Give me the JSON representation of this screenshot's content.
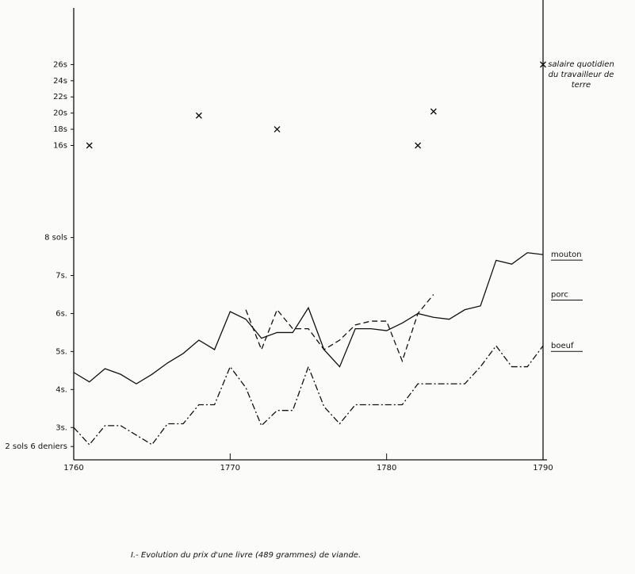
{
  "chart_data": [
    {
      "type": "scatter",
      "series": [
        {
          "name": "salaire quotidien du travailleur de terre",
          "color": "#111111",
          "marker": "x",
          "x": [
            1761,
            1768,
            1773,
            1782,
            1783,
            1790
          ],
          "values": [
            16,
            19.7,
            18,
            16,
            20.2,
            26
          ]
        }
      ],
      "xlim": [
        1760,
        1790
      ],
      "ylim": [
        8.5,
        33
      ],
      "yticks": [
        {
          "value": 16,
          "label": "16s"
        },
        {
          "value": 18,
          "label": "18s"
        },
        {
          "value": 20,
          "label": "20s"
        },
        {
          "value": 22,
          "label": "22s"
        },
        {
          "value": 24,
          "label": "24s"
        },
        {
          "value": 26,
          "label": "26s"
        }
      ]
    },
    {
      "type": "line",
      "title": "I.- Evolution du prix d'une livre (489 grammes) de viande.",
      "x": [
        1760,
        1761,
        1762,
        1763,
        1764,
        1765,
        1766,
        1767,
        1768,
        1769,
        1770,
        1771,
        1772,
        1773,
        1774,
        1775,
        1776,
        1777,
        1778,
        1779,
        1780,
        1781,
        1782,
        1783,
        1784,
        1785,
        1786,
        1787,
        1788,
        1789,
        1790
      ],
      "series": [
        {
          "name": "mouton",
          "color": "#111111",
          "style": "solid",
          "values": [
            4.45,
            4.2,
            4.55,
            4.4,
            4.15,
            4.4,
            4.7,
            4.95,
            5.3,
            5.05,
            6.05,
            5.85,
            5.35,
            5.5,
            5.5,
            6.15,
            5.05,
            4.6,
            5.6,
            5.6,
            5.55,
            5.75,
            6.0,
            5.9,
            5.85,
            6.1,
            6.2,
            7.4,
            7.3,
            7.6,
            7.55
          ]
        },
        {
          "name": "porc",
          "color": "#111111",
          "style": "dashed",
          "values": [
            null,
            null,
            null,
            null,
            null,
            null,
            null,
            null,
            null,
            null,
            null,
            6.1,
            5.05,
            6.1,
            5.6,
            5.6,
            5.05,
            5.3,
            5.7,
            5.8,
            5.8,
            4.75,
            6.0,
            6.5,
            null,
            null,
            null,
            null,
            null,
            null,
            null
          ]
        },
        {
          "name": "boeuf",
          "color": "#111111",
          "style": "dashdot",
          "values": [
            3.0,
            2.55,
            3.05,
            3.05,
            2.8,
            2.55,
            3.1,
            3.1,
            3.6,
            3.6,
            4.6,
            4.05,
            3.05,
            3.45,
            3.45,
            4.6,
            3.55,
            3.1,
            3.6,
            3.6,
            3.6,
            3.6,
            4.15,
            4.15,
            4.15,
            4.15,
            4.6,
            5.15,
            4.6,
            4.6,
            5.15
          ]
        }
      ],
      "xlim": [
        1760,
        1790
      ],
      "xticks": [
        1760,
        1770,
        1780,
        1790
      ],
      "ylim": [
        2.15,
        8.2
      ],
      "yticks": [
        {
          "value": 2.5,
          "label": "2 sols 6 deniers"
        },
        {
          "value": 3,
          "label": "3s."
        },
        {
          "value": 4,
          "label": "4s."
        },
        {
          "value": 5,
          "label": "5s."
        },
        {
          "value": 6,
          "label": "6s."
        },
        {
          "value": 7,
          "label": "7s."
        },
        {
          "value": 8,
          "label": "8 sols"
        }
      ]
    }
  ]
}
